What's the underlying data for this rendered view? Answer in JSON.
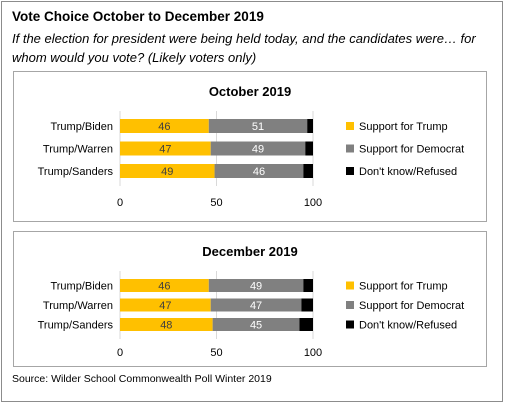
{
  "header": {
    "title": "Vote Choice October to December 2019",
    "subtitle": "If the election for president were being held today, and the candidates were… for whom would you vote?  (Likely voters only)"
  },
  "footer": {
    "source": "Source: Wilder School Commonwealth Poll Winter 2019"
  },
  "colors": {
    "trump": "#FFC000",
    "democrat": "#808080",
    "dont_know": "#000000"
  },
  "chart_data": [
    {
      "type": "bar",
      "orientation": "horizontal",
      "stacked": true,
      "title": "October 2019",
      "categories": [
        "Trump/Biden",
        "Trump/Warren",
        "Trump/Sanders"
      ],
      "series": [
        {
          "name": "Support for Trump",
          "values": [
            46,
            47,
            49
          ],
          "color": "#FFC000"
        },
        {
          "name": "Support for Democrat",
          "values": [
            51,
            49,
            46
          ],
          "color": "#808080"
        },
        {
          "name": "Don't know/Refused",
          "values": [
            3,
            4,
            5
          ],
          "color": "#000000"
        }
      ],
      "xlim": [
        0,
        100
      ],
      "xticks": [
        0,
        50,
        100
      ],
      "legend": "right",
      "grid": true
    },
    {
      "type": "bar",
      "orientation": "horizontal",
      "stacked": true,
      "title": "December 2019",
      "categories": [
        "Trump/Biden",
        "Trump/Warren",
        "Trump/Sanders"
      ],
      "series": [
        {
          "name": "Support for Trump",
          "values": [
            46,
            47,
            48
          ],
          "color": "#FFC000"
        },
        {
          "name": "Support for Democrat",
          "values": [
            49,
            47,
            45
          ],
          "color": "#808080"
        },
        {
          "name": "Don't know/Refused",
          "values": [
            5,
            6,
            7
          ],
          "color": "#000000"
        }
      ],
      "xlim": [
        0,
        100
      ],
      "xticks": [
        0,
        50,
        100
      ],
      "legend": "right",
      "grid": true
    }
  ]
}
